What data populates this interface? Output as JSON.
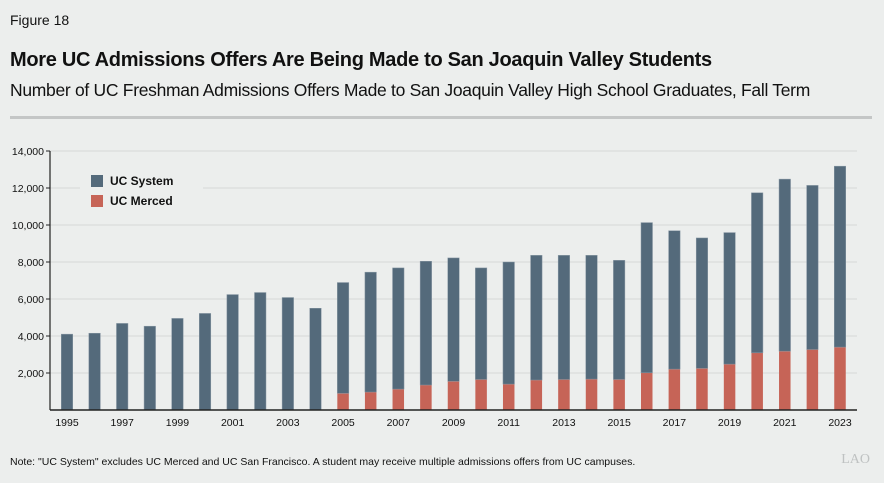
{
  "figure_label": "Figure 18",
  "title": "More UC Admissions Offers Are Being Made to San Joaquin Valley Students",
  "subtitle": "Number of UC Freshman Admissions Offers Made to San Joaquin Valley High School Graduates, Fall Term",
  "note": "Note: \"UC System\" excludes UC Merced and UC San Francisco. A student may receive multiple admissions offers from UC campuses.",
  "logo": "LAO",
  "chart_data": {
    "type": "bar",
    "stacked": true,
    "categories": [
      1995,
      1996,
      1997,
      1998,
      1999,
      2000,
      2001,
      2002,
      2003,
      2004,
      2005,
      2006,
      2007,
      2008,
      2009,
      2010,
      2011,
      2012,
      2013,
      2014,
      2015,
      2016,
      2017,
      2018,
      2019,
      2020,
      2021,
      2022,
      2023
    ],
    "x_tick_labels": [
      "1995",
      "1997",
      "1999",
      "2001",
      "2003",
      "2005",
      "2007",
      "2009",
      "2011",
      "2013",
      "2015",
      "2017",
      "2019",
      "2021",
      "2023"
    ],
    "y_tick_labels": [
      "2,000",
      "4,000",
      "6,000",
      "8,000",
      "10,000",
      "12,000",
      "14,000"
    ],
    "y_ticks": [
      2000,
      4000,
      6000,
      8000,
      10000,
      12000,
      14000
    ],
    "ylim": [
      0,
      14000
    ],
    "grid": true,
    "legend_position": "top-left",
    "series": [
      {
        "name": "UC Merced",
        "color": "#c66457",
        "values": [
          0,
          0,
          0,
          0,
          0,
          0,
          0,
          0,
          0,
          0,
          900,
          970,
          1130,
          1350,
          1550,
          1650,
          1400,
          1620,
          1650,
          1670,
          1650,
          2010,
          2210,
          2250,
          2480,
          3090,
          3180,
          3270,
          3400
        ]
      },
      {
        "name": "UC System",
        "color": "#546a7b",
        "values": [
          4100,
          4150,
          4680,
          4530,
          4950,
          5220,
          6240,
          6350,
          6080,
          5500,
          5990,
          6480,
          6550,
          6690,
          6670,
          6030,
          6600,
          6740,
          6710,
          6690,
          6440,
          8120,
          7480,
          7050,
          7110,
          8650,
          9300,
          8870,
          9780
        ]
      }
    ],
    "legend_order": [
      "UC System",
      "UC Merced"
    ]
  }
}
